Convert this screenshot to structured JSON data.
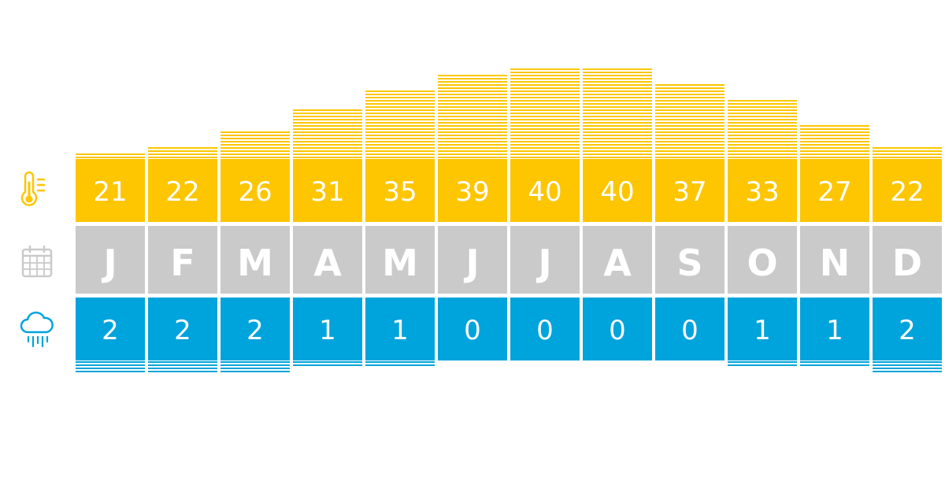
{
  "chart_data": {
    "type": "bar",
    "categories": [
      "J",
      "F",
      "M",
      "A",
      "M",
      "J",
      "J",
      "A",
      "S",
      "O",
      "N",
      "D"
    ],
    "series": [
      {
        "values": [
          21,
          22,
          26,
          31,
          35,
          39,
          40,
          40,
          37,
          33,
          27,
          22
        ]
      },
      {
        "values": [
          2,
          2,
          2,
          1,
          1,
          0,
          0,
          0,
          0,
          1,
          1,
          2
        ]
      }
    ],
    "title": "",
    "xlabel": "",
    "ylabel": "",
    "grid": false,
    "legend": "none",
    "row_icons": [
      "thermometer-icon",
      "calendar-icon",
      "rain-cloud-icon"
    ],
    "colors": {
      "temperature": "#fdc600",
      "months": "#cacaca",
      "rain": "#00a4dc",
      "icon_temperature": "#fdc600",
      "icon_calendar": "#cacaca",
      "icon_rain": "#00a4dc"
    }
  }
}
